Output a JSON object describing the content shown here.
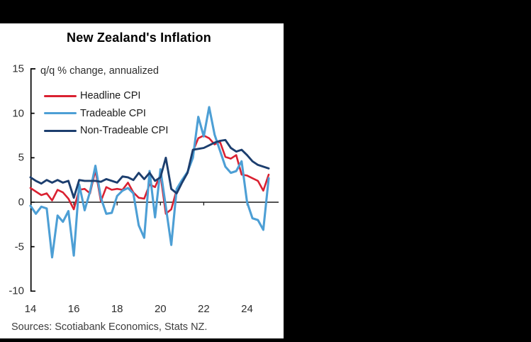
{
  "window": {
    "background": "#000000",
    "panel_background": "#ffffff"
  },
  "footer": {
    "sources": "Sources: Scotiabank Economics, Stats NZ."
  },
  "chart_data": {
    "type": "line",
    "title": "New Zealand's Inflation",
    "subtitle": "q/q % change, annualized",
    "xlabel": "",
    "ylabel": "",
    "x_unit": "quarterly, year labels show last two digits",
    "x_start": 2014.0,
    "x_step": 0.25,
    "x_end": 2025.0,
    "x_tick_labels": [
      "14",
      "16",
      "18",
      "20",
      "22",
      "24"
    ],
    "x_tick_years": [
      2014,
      2016,
      2018,
      2020,
      2022,
      2024
    ],
    "y_ticks": [
      15,
      10,
      5,
      0,
      -5,
      -10
    ],
    "ylim": [
      -10,
      15
    ],
    "grid": false,
    "zero_line": true,
    "legend_position": "top-left",
    "axis_color": "#000000",
    "series": [
      {
        "name": "Headline CPI",
        "color": "#da2131",
        "values": [
          1.6,
          1.2,
          0.8,
          1.0,
          0.2,
          1.4,
          1.1,
          0.4,
          -0.8,
          1.4,
          1.5,
          1.0,
          3.6,
          0.1,
          1.7,
          1.4,
          1.5,
          1.4,
          2.2,
          1.1,
          0.5,
          0.4,
          2.0,
          1.7,
          3.1,
          -1.3,
          -0.8,
          1.4,
          2.3,
          3.3,
          5.7,
          7.2,
          7.5,
          7.2,
          6.5,
          6.8,
          5.1,
          4.9,
          5.3,
          3.1,
          3.0,
          2.7,
          2.4,
          1.3,
          3.1
        ]
      },
      {
        "name": "Tradeable CPI",
        "color": "#4d9fd5",
        "values": [
          -0.4,
          -1.3,
          -0.5,
          -0.7,
          -6.2,
          -1.5,
          -2.2,
          -1.0,
          -6.0,
          2.0,
          -0.9,
          1.2,
          4.1,
          0.5,
          -1.3,
          -1.2,
          0.7,
          1.3,
          1.6,
          1.0,
          -2.6,
          -4.0,
          3.5,
          -1.7,
          3.7,
          -0.5,
          -4.8,
          1.5,
          2.5,
          3.4,
          5.0,
          9.6,
          7.4,
          10.7,
          7.6,
          5.8,
          4.0,
          3.3,
          3.5,
          4.6,
          0.0,
          -1.8,
          -2.0,
          -3.1,
          2.7
        ]
      },
      {
        "name": "Non-Tradeable CPI",
        "color": "#1c3e6e",
        "values": [
          2.8,
          2.4,
          2.1,
          2.5,
          2.2,
          2.5,
          2.2,
          2.4,
          0.5,
          2.5,
          2.4,
          2.4,
          2.4,
          2.3,
          2.6,
          2.4,
          2.2,
          2.9,
          2.8,
          2.5,
          3.3,
          2.6,
          3.3,
          2.4,
          2.8,
          5.0,
          1.5,
          1.0,
          2.2,
          3.3,
          5.9,
          6.0,
          6.1,
          6.4,
          6.7,
          6.9,
          7.0,
          6.1,
          5.7,
          5.9,
          5.3,
          4.6,
          4.2,
          4.0,
          3.8
        ]
      }
    ]
  }
}
